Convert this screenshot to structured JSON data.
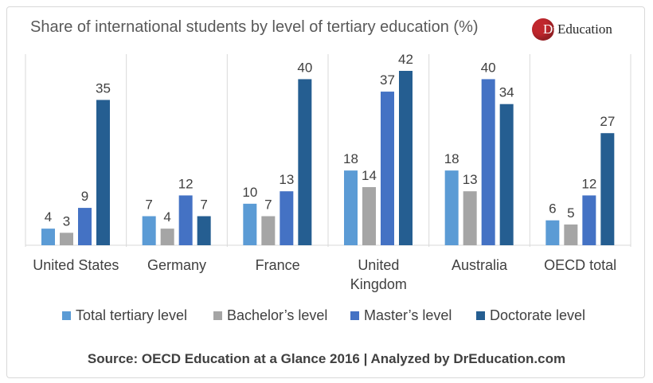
{
  "chart_data": {
    "type": "bar",
    "title": "Share of international students by level of tertiary education (%)",
    "categories": [
      "United States",
      "Germany",
      "France",
      "United Kingdom",
      "Australia",
      "OECD total"
    ],
    "category_label_lines": [
      [
        "United States"
      ],
      [
        "Germany"
      ],
      [
        "France"
      ],
      [
        "United",
        "Kingdom"
      ],
      [
        "Australia"
      ],
      [
        "OECD total"
      ]
    ],
    "series": [
      {
        "name": "Total tertiary level",
        "color": "#5b9bd5",
        "values": [
          4,
          7,
          10,
          18,
          18,
          6
        ]
      },
      {
        "name": "Bachelor’s level",
        "color": "#a5a5a5",
        "values": [
          3,
          4,
          7,
          14,
          13,
          5
        ]
      },
      {
        "name": "Master’s level",
        "color": "#4472c4",
        "values": [
          9,
          12,
          13,
          37,
          40,
          12
        ]
      },
      {
        "name": "Doctorate level",
        "color": "#255e91",
        "values": [
          35,
          7,
          40,
          42,
          34,
          27
        ]
      }
    ],
    "ylim": [
      0,
      45
    ],
    "legend_position": "bottom",
    "grid": false
  },
  "logo": {
    "mark": "Dr",
    "text": "Education"
  },
  "source": "Source: OECD Education at a Glance 2016  | Analyzed by DrEducation.com"
}
